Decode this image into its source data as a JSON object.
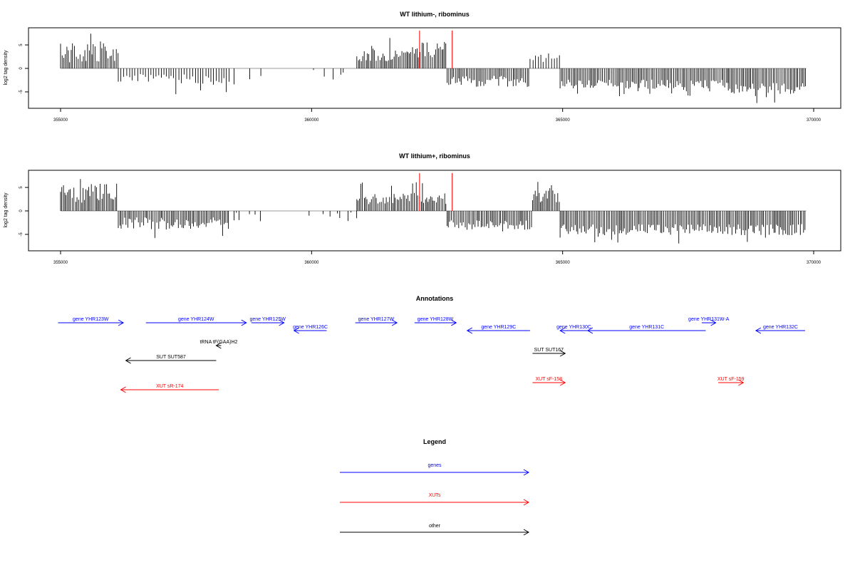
{
  "chart_data": [
    {
      "type": "bar",
      "title": "WT lithium-, ribominus",
      "ylabel": "log2 tag density",
      "xlabel": "",
      "xlim": [
        355000,
        370000
      ],
      "ylim": [
        -8.5,
        8.5
      ],
      "xticks": [
        "355000",
        "360000",
        "365000",
        "370000"
      ],
      "yticks": [
        "-5",
        "0",
        "5"
      ],
      "grid": false,
      "highlight_positions": [
        362150,
        362800
      ],
      "highlight_color": "#ff0000",
      "segments": [
        {
          "start": 355000,
          "end": 356150,
          "mean": 3.3,
          "range": 2.2
        },
        {
          "start": 356150,
          "end": 357200,
          "mean": -2.2,
          "range": 1.0
        },
        {
          "start": 357200,
          "end": 358400,
          "mean": -2.4,
          "range": 1.1
        },
        {
          "start": 358400,
          "end": 360900,
          "mean": -1.5,
          "range": 1.2
        },
        {
          "start": 360900,
          "end": 361950,
          "mean": 2.8,
          "range": 1.3
        },
        {
          "start": 361950,
          "end": 362700,
          "mean": 4.0,
          "range": 1.8
        },
        {
          "start": 362700,
          "end": 364350,
          "mean": -2.8,
          "range": 1.2
        },
        {
          "start": 364350,
          "end": 364950,
          "mean": 2.2,
          "range": 1.0
        },
        {
          "start": 364950,
          "end": 368300,
          "mean": -3.4,
          "range": 1.0
        },
        {
          "start": 368300,
          "end": 369850,
          "mean": -4.2,
          "range": 1.2
        }
      ]
    },
    {
      "type": "bar",
      "title": "WT lithium+, ribominus",
      "ylabel": "log2 tag density",
      "xlabel": "",
      "xlim": [
        355000,
        370000
      ],
      "ylim": [
        -8.5,
        8.5
      ],
      "xticks": [
        "355000",
        "360000",
        "365000",
        "370000"
      ],
      "yticks": [
        "-5",
        "0",
        "5"
      ],
      "grid": false,
      "highlight_positions": [
        362150,
        362800
      ],
      "highlight_color": "#ff0000",
      "segments": [
        {
          "start": 355000,
          "end": 356150,
          "mean": 3.6,
          "range": 2.3
        },
        {
          "start": 356150,
          "end": 358350,
          "mean": -2.6,
          "range": 1.3
        },
        {
          "start": 358350,
          "end": 360900,
          "mean": -1.2,
          "range": 1.0
        },
        {
          "start": 360900,
          "end": 361950,
          "mean": 2.6,
          "range": 1.2
        },
        {
          "start": 361950,
          "end": 362700,
          "mean": 2.8,
          "range": 1.3
        },
        {
          "start": 362700,
          "end": 364400,
          "mean": -3.0,
          "range": 1.0
        },
        {
          "start": 364400,
          "end": 364950,
          "mean": 3.0,
          "range": 1.4
        },
        {
          "start": 364950,
          "end": 369850,
          "mean": -4.0,
          "range": 1.2
        }
      ]
    },
    {
      "type": "other",
      "title": "Annotations",
      "features": [
        {
          "label": "gene YHR123W",
          "kind": "gene",
          "start": 354950,
          "end": 356250,
          "strand": "+",
          "row": 0
        },
        {
          "label": "gene YHR124W",
          "kind": "gene",
          "start": 356700,
          "end": 358700,
          "strand": "+",
          "row": 0
        },
        {
          "label": "gene YHR125W",
          "kind": "gene",
          "start": 358800,
          "end": 359450,
          "strand": "+",
          "row": 0
        },
        {
          "label": "gene YHR126C",
          "kind": "gene",
          "start": 359650,
          "end": 360300,
          "strand": "-",
          "row": 1
        },
        {
          "label": "gene YHR127W",
          "kind": "gene",
          "start": 360870,
          "end": 361700,
          "strand": "+",
          "row": 0
        },
        {
          "label": "gene YHR128W",
          "kind": "gene",
          "start": 362050,
          "end": 362880,
          "strand": "+",
          "row": 0
        },
        {
          "label": "gene YHR129C",
          "kind": "gene",
          "start": 363100,
          "end": 364350,
          "strand": "-",
          "row": 1
        },
        {
          "label": "gene YHR130C",
          "kind": "gene",
          "start": 364950,
          "end": 365500,
          "strand": "-",
          "row": 1
        },
        {
          "label": "gene YHR131C",
          "kind": "gene",
          "start": 365500,
          "end": 367850,
          "strand": "-",
          "row": 1
        },
        {
          "label": "gene YHR131W-A",
          "kind": "gene",
          "start": 367770,
          "end": 368050,
          "strand": "+",
          "row": 0
        },
        {
          "label": "gene YHR132C",
          "kind": "gene",
          "start": 368850,
          "end": 370200,
          "strand": "-",
          "row": 1
        },
        {
          "label": "tRNA tF(GAA)H2",
          "kind": "other",
          "start": 358100,
          "end": 358200,
          "strand": "-",
          "row": 2
        },
        {
          "label": "SUT SUT167",
          "kind": "other",
          "start": 364400,
          "end": 365050,
          "strand": "+",
          "row": 3
        },
        {
          "label": "SUT SUT587",
          "kind": "other",
          "start": 356300,
          "end": 358100,
          "strand": "-",
          "row": 4
        },
        {
          "label": "XUT sR-174",
          "kind": "xut",
          "start": 356200,
          "end": 358150,
          "strand": "-",
          "row": 5
        },
        {
          "label": "XUT sF-158",
          "kind": "xut",
          "start": 364400,
          "end": 365050,
          "strand": "+",
          "row": 6
        },
        {
          "label": "XUT sF-159",
          "kind": "xut",
          "start": 368100,
          "end": 368600,
          "strand": "+",
          "row": 6
        }
      ]
    }
  ],
  "legend": {
    "title": "Legend",
    "items": [
      {
        "label": "genes",
        "color": "#0000ff"
      },
      {
        "label": "XUTs",
        "color": "#ff0000"
      },
      {
        "label": "other",
        "color": "#000000"
      }
    ]
  },
  "colors": {
    "gene": "#0000ff",
    "xut": "#ff0000",
    "other": "#000000",
    "bars": "#000000",
    "baseline": "#999999"
  }
}
